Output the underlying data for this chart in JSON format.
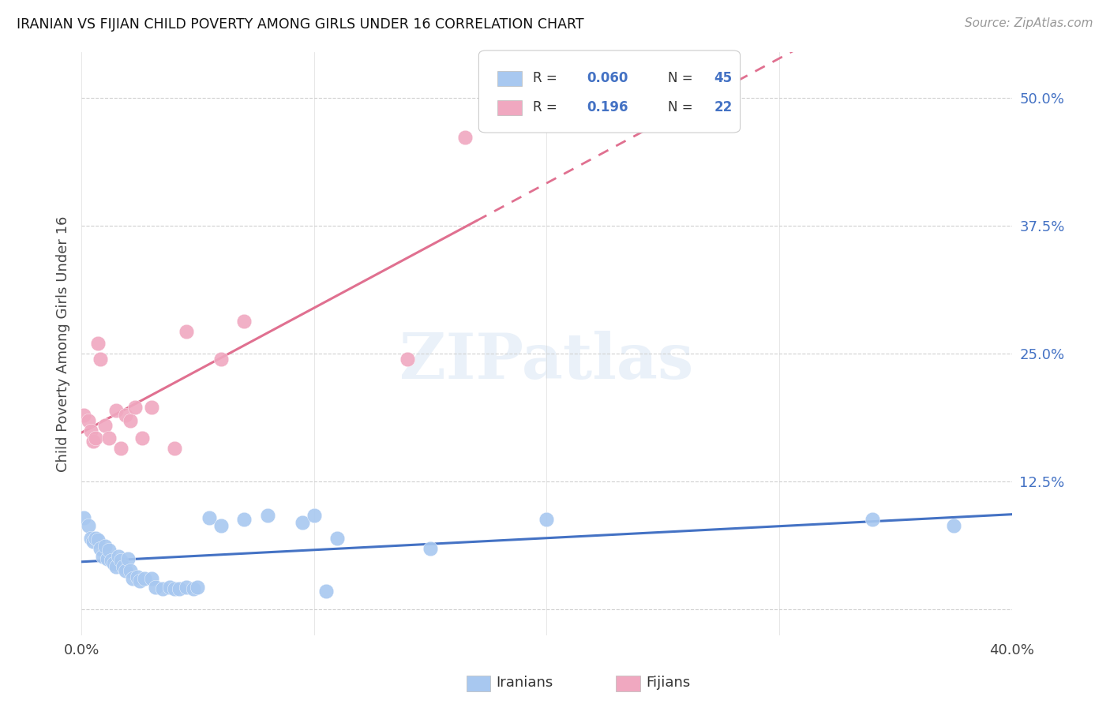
{
  "title": "IRANIAN VS FIJIAN CHILD POVERTY AMONG GIRLS UNDER 16 CORRELATION CHART",
  "source": "Source: ZipAtlas.com",
  "ylabel": "Child Poverty Among Girls Under 16",
  "ytick_labels": [
    "",
    "12.5%",
    "25.0%",
    "37.5%",
    "50.0%"
  ],
  "yticks": [
    0.0,
    0.125,
    0.25,
    0.375,
    0.5
  ],
  "xlim": [
    0.0,
    0.4
  ],
  "ylim": [
    -0.025,
    0.545
  ],
  "iranian_color": "#a8c8f0",
  "fijian_color": "#f0a8c0",
  "iranian_line_color": "#4472c4",
  "fijian_line_color": "#e07090",
  "watermark": "ZIPatlas",
  "background_color": "#ffffff",
  "grid_color": "#d0d0d0",
  "iranians_x": [
    0.001,
    0.003,
    0.004,
    0.005,
    0.006,
    0.007,
    0.008,
    0.009,
    0.01,
    0.011,
    0.012,
    0.013,
    0.014,
    0.015,
    0.016,
    0.017,
    0.018,
    0.019,
    0.02,
    0.021,
    0.022,
    0.024,
    0.025,
    0.027,
    0.03,
    0.032,
    0.035,
    0.038,
    0.04,
    0.042,
    0.045,
    0.048,
    0.05,
    0.055,
    0.06,
    0.07,
    0.08,
    0.095,
    0.1,
    0.105,
    0.11,
    0.15,
    0.2,
    0.34,
    0.375
  ],
  "iranians_y": [
    0.09,
    0.082,
    0.07,
    0.067,
    0.07,
    0.068,
    0.06,
    0.052,
    0.062,
    0.05,
    0.058,
    0.048,
    0.045,
    0.042,
    0.052,
    0.048,
    0.042,
    0.038,
    0.05,
    0.038,
    0.03,
    0.032,
    0.028,
    0.03,
    0.03,
    0.022,
    0.02,
    0.022,
    0.02,
    0.02,
    0.022,
    0.02,
    0.022,
    0.09,
    0.082,
    0.088,
    0.092,
    0.085,
    0.092,
    0.018,
    0.07,
    0.06,
    0.088,
    0.088,
    0.082
  ],
  "fijians_x": [
    0.001,
    0.003,
    0.004,
    0.005,
    0.006,
    0.007,
    0.008,
    0.01,
    0.012,
    0.015,
    0.017,
    0.019,
    0.021,
    0.023,
    0.026,
    0.03,
    0.04,
    0.045,
    0.06,
    0.07,
    0.14,
    0.165
  ],
  "fijians_y": [
    0.19,
    0.185,
    0.175,
    0.165,
    0.168,
    0.26,
    0.245,
    0.18,
    0.168,
    0.195,
    0.158,
    0.19,
    0.185,
    0.198,
    0.168,
    0.198,
    0.158,
    0.272,
    0.245,
    0.282,
    0.245,
    0.462
  ],
  "legend_r1": "R = 0.060",
  "legend_n1": "N = 45",
  "legend_r2": "R =  0.196",
  "legend_n2": "N = 22"
}
